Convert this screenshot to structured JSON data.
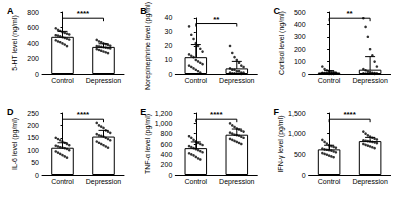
{
  "chart_data": [
    {
      "type": "bar",
      "title": "A",
      "ylabel": "5-HT level (ng/ml)",
      "categories": [
        "Control",
        "Depression"
      ],
      "values": [
        480,
        350
      ],
      "errors": [
        70,
        40
      ],
      "color": "#ffffff",
      "points": [
        [
          590,
          570,
          555,
          540,
          530,
          520,
          510,
          500,
          495,
          485,
          475,
          465,
          455,
          445,
          435,
          420,
          410,
          395,
          380,
          360
        ],
        [
          440,
          420,
          410,
          395,
          385,
          375,
          365,
          360,
          355,
          350,
          345,
          340,
          335,
          330,
          320,
          310,
          300,
          290,
          280,
          270
        ]
      ],
      "ylim": [
        0,
        800
      ],
      "yticks": [
        0,
        200,
        400,
        600,
        800
      ],
      "grid": false,
      "annotations": [
        {
          "text": "****",
          "from": "Control",
          "to": "Depression"
        }
      ]
    },
    {
      "type": "bar",
      "title": "B",
      "ylabel": "Norepinephrine level (pg/ml)",
      "categories": [
        "Control",
        "Depression"
      ],
      "values": [
        12,
        4
      ],
      "errors": [
        9,
        5
      ],
      "color": "#ffffff",
      "points": [
        [
          34,
          28,
          25,
          22,
          20,
          18,
          16,
          14,
          13,
          12,
          10,
          9,
          8,
          7,
          6,
          5,
          4,
          3,
          2,
          1
        ],
        [
          20,
          15,
          12,
          10,
          8,
          6,
          5,
          4,
          3,
          3,
          2,
          2,
          1,
          1,
          1,
          0.5,
          0.5,
          0.3,
          0.2,
          0.1
        ]
      ],
      "ylim": [
        0,
        40
      ],
      "yticks": [
        0,
        10,
        20,
        30,
        40
      ],
      "grid": false,
      "annotations": [
        {
          "text": "**",
          "from": "Control",
          "to": "Depression"
        }
      ]
    },
    {
      "type": "bar",
      "title": "C",
      "ylabel": "Cortisol level (ng/ml)",
      "categories": [
        "Control",
        "Depression"
      ],
      "values": [
        12,
        35
      ],
      "errors": [
        15,
        105
      ],
      "color": "#ffffff",
      "points": [
        [
          60,
          40,
          30,
          25,
          20,
          15,
          12,
          10,
          8,
          7,
          6,
          5,
          4,
          3,
          3,
          2,
          2,
          1,
          1,
          1
        ],
        [
          450,
          380,
          300,
          200,
          150,
          100,
          60,
          40,
          30,
          20,
          15,
          10,
          8,
          6,
          5,
          4,
          3,
          2,
          2,
          1
        ]
      ],
      "ylim": [
        0,
        500
      ],
      "yticks": [
        0,
        100,
        200,
        300,
        400,
        500
      ],
      "grid": false,
      "annotations": [
        {
          "text": "**",
          "from": "Control",
          "to": "Depression"
        }
      ]
    },
    {
      "type": "bar",
      "title": "D",
      "ylabel": "IL-6 level (pg/ml)",
      "categories": [
        "Control",
        "Depression"
      ],
      "values": [
        110,
        155
      ],
      "errors": [
        20,
        25
      ],
      "color": "#ffffff",
      "points": [
        [
          150,
          145,
          140,
          135,
          130,
          125,
          120,
          118,
          115,
          112,
          110,
          108,
          105,
          100,
          95,
          90,
          85,
          80,
          75,
          70
        ],
        [
          210,
          200,
          195,
          190,
          180,
          175,
          170,
          165,
          160,
          158,
          155,
          150,
          145,
          140,
          135,
          130,
          125,
          120,
          115,
          110
        ]
      ],
      "ylim": [
        0,
        250
      ],
      "yticks": [
        0,
        50,
        100,
        150,
        200,
        250
      ],
      "grid": false,
      "annotations": [
        {
          "text": "****",
          "from": "Control",
          "to": "Depression"
        }
      ]
    },
    {
      "type": "bar",
      "title": "E",
      "ylabel": "TNF-α level (pg/ml)",
      "categories": [
        "Control",
        "Depression"
      ],
      "values": [
        520,
        780
      ],
      "errors": [
        120,
        110
      ],
      "color": "#ffffff",
      "points": [
        [
          750,
          720,
          680,
          650,
          620,
          600,
          580,
          560,
          540,
          520,
          500,
          480,
          460,
          440,
          420,
          400,
          380,
          350,
          320,
          300
        ],
        [
          1000,
          960,
          930,
          900,
          880,
          860,
          840,
          820,
          800,
          780,
          770,
          760,
          740,
          720,
          700,
          680,
          660,
          640,
          620,
          600
        ]
      ],
      "ylim": [
        0,
        1200
      ],
      "yticks": [
        0,
        200,
        400,
        600,
        800,
        1000,
        1200
      ],
      "grid": false,
      "annotations": [
        {
          "text": "****",
          "from": "Control",
          "to": "Depression"
        }
      ]
    },
    {
      "type": "bar",
      "title": "F",
      "ylabel": "IFN-γ level (pg/ml)",
      "categories": [
        "Control",
        "Depression"
      ],
      "values": [
        620,
        820
      ],
      "errors": [
        100,
        90
      ],
      "color": "#ffffff",
      "points": [
        [
          850,
          800,
          760,
          720,
          700,
          680,
          660,
          640,
          620,
          610,
          600,
          590,
          570,
          550,
          530,
          510,
          490,
          470,
          450,
          430
        ],
        [
          1050,
          1000,
          960,
          930,
          900,
          880,
          860,
          840,
          830,
          820,
          810,
          800,
          790,
          770,
          750,
          730,
          710,
          690,
          670,
          650
        ]
      ],
      "ylim": [
        0,
        1500
      ],
      "yticks": [
        0,
        500,
        1000,
        1500
      ],
      "grid": false,
      "annotations": [
        {
          "text": "****",
          "from": "Control",
          "to": "Depression"
        }
      ]
    }
  ]
}
